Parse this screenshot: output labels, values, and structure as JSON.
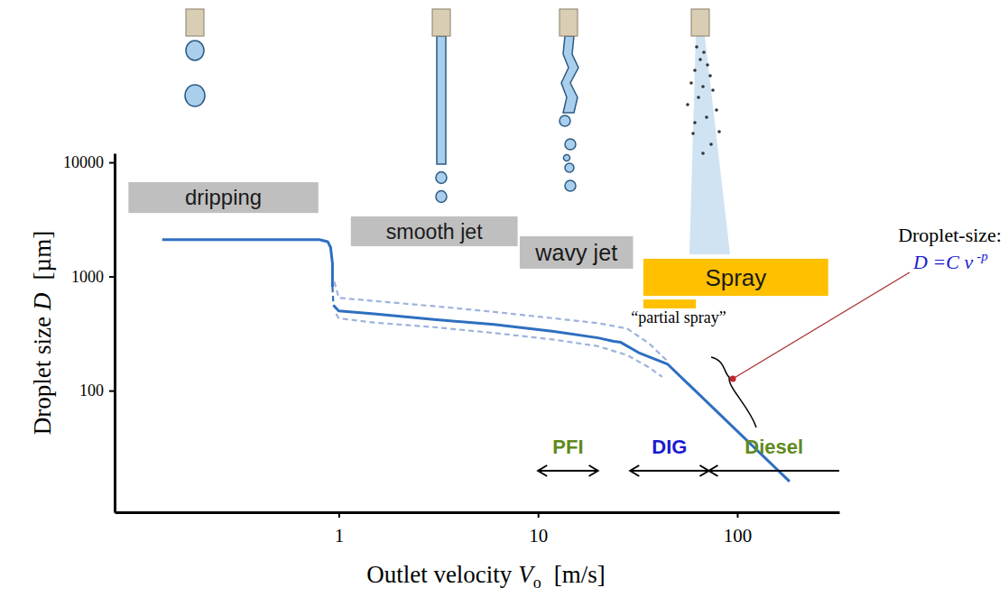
{
  "chart_data": {
    "type": "line",
    "xlabel": {
      "text": "Outlet velocity",
      "symbol": "V",
      "subscript": "o",
      "unit": "[m/s]"
    },
    "ylabel": {
      "text": "Droplet size",
      "symbol": "D",
      "unit": "[µm]"
    },
    "log": true,
    "xlim": [
      0.075,
      325
    ],
    "ylim": [
      8.6,
      12000
    ],
    "xticks": [
      1,
      10,
      100
    ],
    "yticks": [
      100,
      1000,
      10000
    ],
    "series": [
      {
        "x": [
          0.13,
          0.8,
          0.88,
          0.91,
          0.93,
          0.93,
          0.935,
          0.94,
          1.0,
          1.5,
          3,
          6,
          12,
          20,
          24,
          26,
          32,
          44.8,
          183
        ],
        "values": [
          2100,
          2100,
          2020,
          1800,
          1300,
          810,
          null,
          560,
          500,
          470,
          420,
          380,
          330,
          290,
          270,
          265,
          215,
          170,
          16
        ],
        "color": "#2e6fc0",
        "line_style": "solid"
      },
      {
        "x": [
          0.93,
          0.94
        ],
        "values": [
          810,
          560
        ],
        "color": "#2e6fc0",
        "line_style": "dashed"
      },
      {
        "x": [
          0.95,
          1.0,
          1.5,
          3,
          6,
          12,
          20,
          28,
          36,
          44.8
        ],
        "values": [
          900,
          650,
          610,
          550,
          490,
          430,
          390,
          350,
          260,
          180
        ],
        "color": "#9db3dc",
        "line_style": "dashed"
      },
      {
        "x": [
          0.97,
          1.0,
          1.5,
          3,
          6,
          12,
          20,
          28,
          36,
          42
        ],
        "values": [
          470,
          430,
          395,
          360,
          320,
          280,
          245,
          205,
          160,
          132
        ],
        "color": "#9db3dc",
        "line_style": "dashed"
      }
    ],
    "regimes": [
      {
        "label": "dripping",
        "x": [
          0.088,
          0.79
        ],
        "y": [
          3600,
          6700
        ],
        "color": "#bfbfbf"
      },
      {
        "label": "smooth jet",
        "x": [
          1.15,
          7.9
        ],
        "y": [
          1840,
          3360
        ],
        "color": "#bfbfbf"
      },
      {
        "label": "wavy jet",
        "x": [
          8.1,
          30
        ],
        "y": [
          1170,
          2250
        ],
        "color": "#bfbfbf"
      },
      {
        "label": "Spray",
        "x": [
          33.8,
          286
        ],
        "y": [
          676,
          1430
        ],
        "color": "#ffc000"
      },
      {
        "label": "“partial spray”",
        "x": [
          33.8,
          62
        ],
        "y": [
          524,
          628
        ],
        "color": "#ffc000"
      }
    ],
    "engines": [
      {
        "label": "PFI",
        "x": [
          10,
          20
        ],
        "color": "#5f8a1e"
      },
      {
        "label": "DIG",
        "x": [
          29,
          72
        ],
        "color": "#1a1ad0"
      },
      {
        "label": "Diesel",
        "x": [
          72,
          325
        ],
        "color": "#5f8a1e"
      }
    ],
    "annotation": {
      "label": "Droplet-size:",
      "formula": "D =C v",
      "exponent": "-p",
      "x": 95,
      "y": 127,
      "color": "#1a1ad0"
    }
  }
}
